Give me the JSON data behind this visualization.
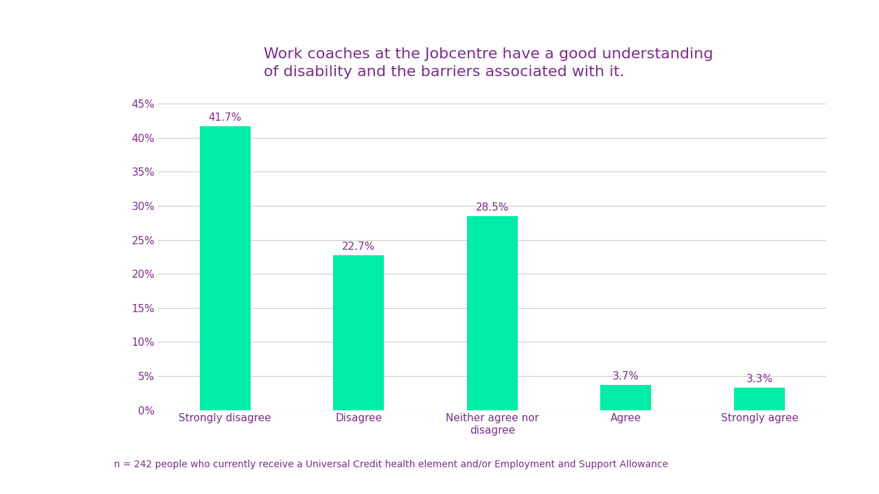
{
  "title_line1": "Work coaches at the Jobcentre have a good understanding",
  "title_line2": "of disability and the barriers associated with it.",
  "categories": [
    "Strongly disagree",
    "Disagree",
    "Neither agree nor\ndisagree",
    "Agree",
    "Strongly agree"
  ],
  "values": [
    41.7,
    22.7,
    28.5,
    3.7,
    3.3
  ],
  "bar_color": "#00EDA8",
  "title_color": "#7B2D8B",
  "label_color": "#7B2D8B",
  "tick_color": "#7B2D8B",
  "annotation_color": "#7B2D8B",
  "footnote": "n = 242 people who currently receive a Universal Credit health element and/or Employment and Support Allowance",
  "ylim": [
    0,
    45
  ],
  "yticks": [
    0,
    5,
    10,
    15,
    20,
    25,
    30,
    35,
    40,
    45
  ],
  "background_color": "#ffffff",
  "grid_color": "#cccccc",
  "title_fontsize": 16,
  "tick_fontsize": 11,
  "annotation_fontsize": 11,
  "footnote_fontsize": 10,
  "bar_width": 0.38
}
